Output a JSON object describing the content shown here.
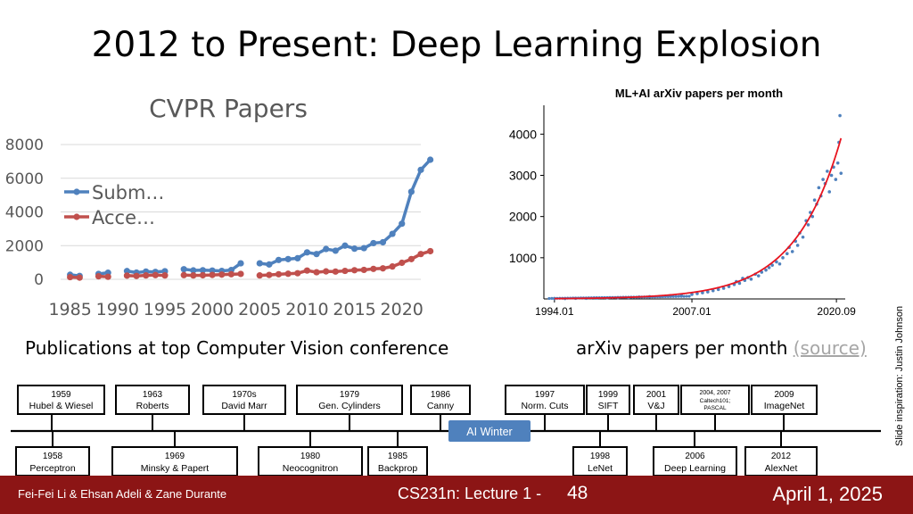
{
  "slide": {
    "title": "2012 to Present: Deep Learning Explosion",
    "cvpr_caption": "Publications at top Computer Vision conference",
    "arxiv_caption": "arXiv papers per month",
    "arxiv_source_link": "(source)",
    "side_note": "Slide inspiration: Justin Johnson"
  },
  "footer": {
    "authors": "Fei-Fei Li & Ehsan Adeli & Zane Durante",
    "course": "CS231n: Lecture 1 -",
    "page": "48",
    "date": "April 1, 2025"
  },
  "colors": {
    "submitted": "#4f81bd",
    "accepted": "#c0504d",
    "fit": "#e8141f",
    "dots": "#4f81bd",
    "footer": "#8c1515",
    "winter": "#4f81bd"
  },
  "chart_data": [
    {
      "type": "line",
      "title": "CVPR Papers",
      "xlabel": "",
      "ylabel": "",
      "xlim": [
        1984,
        2022
      ],
      "ylim": [
        0,
        8000
      ],
      "x_ticks": [
        "1985",
        "1990",
        "1995",
        "2000",
        "2005",
        "2010",
        "2015",
        "2020"
      ],
      "y_ticks": [
        "0",
        "2000",
        "4000",
        "6000",
        "8000"
      ],
      "grid": true,
      "legend": "left",
      "series": [
        {
          "name": "Subm…",
          "color": "#4f81bd",
          "segments": [
            [
              [
                1985,
                270
              ],
              [
                1986,
                200
              ]
            ],
            [
              [
                1988,
                320
              ],
              [
                1989,
                390
              ]
            ],
            [
              [
                1991,
                490
              ],
              [
                1992,
                400
              ],
              [
                1993,
                460
              ],
              [
                1994,
                440
              ],
              [
                1995,
                480
              ]
            ],
            [
              [
                1997,
                600
              ],
              [
                1998,
                530
              ],
              [
                1999,
                540
              ],
              [
                2000,
                520
              ],
              [
                2001,
                500
              ],
              [
                2002,
                550
              ],
              [
                2003,
                950
              ]
            ],
            [
              [
                2005,
                950
              ],
              [
                2006,
                880
              ],
              [
                2007,
                1150
              ],
              [
                2008,
                1200
              ],
              [
                2009,
                1250
              ],
              [
                2010,
                1600
              ],
              [
                2011,
                1500
              ],
              [
                2012,
                1800
              ],
              [
                2013,
                1700
              ],
              [
                2014,
                2000
              ],
              [
                2015,
                1820
              ],
              [
                2016,
                1850
              ],
              [
                2017,
                2150
              ],
              [
                2018,
                2200
              ],
              [
                2019,
                2700
              ],
              [
                2020,
                3300
              ],
              [
                2021,
                5200
              ],
              [
                2022,
                6500
              ],
              [
                2023,
                7100
              ]
            ]
          ]
        },
        {
          "name": "Acce…",
          "color": "#c0504d",
          "segments": [
            [
              [
                1985,
                130
              ],
              [
                1986,
                100
              ]
            ],
            [
              [
                1988,
                180
              ],
              [
                1989,
                150
              ]
            ],
            [
              [
                1991,
                220
              ],
              [
                1992,
                200
              ],
              [
                1993,
                230
              ],
              [
                1994,
                250
              ],
              [
                1995,
                230
              ]
            ],
            [
              [
                1997,
                250
              ],
              [
                1998,
                230
              ],
              [
                1999,
                240
              ],
              [
                2000,
                260
              ],
              [
                2001,
                280
              ],
              [
                2002,
                300
              ],
              [
                2003,
                320
              ]
            ],
            [
              [
                2005,
                230
              ],
              [
                2006,
                260
              ],
              [
                2007,
                300
              ],
              [
                2008,
                330
              ],
              [
                2009,
                360
              ],
              [
                2010,
                520
              ],
              [
                2011,
                420
              ],
              [
                2012,
                470
              ],
              [
                2013,
                460
              ],
              [
                2014,
                500
              ],
              [
                2015,
                540
              ],
              [
                2016,
                560
              ],
              [
                2017,
                620
              ],
              [
                2018,
                650
              ],
              [
                2019,
                760
              ],
              [
                2020,
                980
              ],
              [
                2021,
                1200
              ],
              [
                2022,
                1500
              ],
              [
                2023,
                1670
              ]
            ]
          ]
        }
      ]
    },
    {
      "type": "scatter",
      "title": "ML+AI arXiv papers per month",
      "xlabel": "",
      "ylabel": "",
      "xlim": [
        1993,
        2021.5
      ],
      "ylim": [
        0,
        4700
      ],
      "x_ticks": [
        "1994.01",
        "2007.01",
        "2020.09"
      ],
      "y_ticks": [
        "1000",
        "2000",
        "3000",
        "4000"
      ],
      "points": [
        [
          1994,
          10
        ],
        [
          1995,
          10
        ],
        [
          1996,
          15
        ],
        [
          1997,
          15
        ],
        [
          1998,
          20
        ],
        [
          1999,
          25
        ],
        [
          2000,
          30
        ],
        [
          2001,
          35
        ],
        [
          2002,
          45
        ],
        [
          2003,
          55
        ],
        [
          2004,
          60
        ],
        [
          2005,
          80
        ],
        [
          2006,
          100
        ],
        [
          2007,
          110
        ],
        [
          2007.5,
          130
        ],
        [
          2008,
          150
        ],
        [
          2008.5,
          170
        ],
        [
          2009,
          200
        ],
        [
          2009.5,
          230
        ],
        [
          2010,
          260
        ],
        [
          2010.5,
          300
        ],
        [
          2011,
          350
        ],
        [
          2011.2,
          420
        ],
        [
          2011.5,
          380
        ],
        [
          2011.8,
          500
        ],
        [
          2012,
          450
        ],
        [
          2012.3,
          520
        ],
        [
          2012.6,
          480
        ],
        [
          2013,
          600
        ],
        [
          2013.3,
          560
        ],
        [
          2013.6,
          650
        ],
        [
          2014,
          700
        ],
        [
          2014.3,
          760
        ],
        [
          2014.6,
          820
        ],
        [
          2015,
          900
        ],
        [
          2015.3,
          850
        ],
        [
          2015.6,
          1000
        ],
        [
          2016,
          1100
        ],
        [
          2016.2,
          1250
        ],
        [
          2016.5,
          1150
        ],
        [
          2016.8,
          1400
        ],
        [
          2017,
          1300
        ],
        [
          2017.2,
          1600
        ],
        [
          2017.5,
          1500
        ],
        [
          2017.8,
          1900
        ],
        [
          2018,
          1800
        ],
        [
          2018.2,
          2100
        ],
        [
          2018.4,
          2000
        ],
        [
          2018.6,
          2400
        ],
        [
          2018.8,
          2300
        ],
        [
          2019,
          2700
        ],
        [
          2019.2,
          2500
        ],
        [
          2019.4,
          2900
        ],
        [
          2019.6,
          2800
        ],
        [
          2019.8,
          3100
        ],
        [
          2020,
          2600
        ],
        [
          2020.2,
          3000
        ],
        [
          2020.4,
          3200
        ],
        [
          2020.6,
          2900
        ],
        [
          2020.8,
          3300
        ],
        [
          2020.9,
          3800
        ],
        [
          2021,
          4450
        ],
        [
          2021.1,
          3050
        ]
      ],
      "fit": "exponential",
      "fit_color": "#e8141f"
    }
  ],
  "timeline": {
    "ai_winter": "AI Winter",
    "top": [
      {
        "year": "1959",
        "name": "Hubel & Wiesel"
      },
      {
        "year": "1963",
        "name": "Roberts"
      },
      {
        "year": "1970s",
        "name": "David Marr"
      },
      {
        "year": "1979",
        "name": "Gen. Cylinders"
      },
      {
        "year": "1986",
        "name": "Canny"
      },
      {
        "year": "1997",
        "name": "Norm. Cuts"
      },
      {
        "year": "1999",
        "name": "SIFT"
      },
      {
        "year": "2001",
        "name": "V&J"
      },
      {
        "year": "2004, 2007",
        "name": "Caltech101; PASCAL"
      },
      {
        "year": "2009",
        "name": "ImageNet"
      }
    ],
    "bottom": [
      {
        "year": "1958",
        "name": "Perceptron"
      },
      {
        "year": "1969",
        "name": "Minsky & Papert"
      },
      {
        "year": "1980",
        "name": "Neocognitron"
      },
      {
        "year": "1985",
        "name": "Backprop"
      },
      {
        "year": "1998",
        "name": "LeNet"
      },
      {
        "year": "2006",
        "name": "Deep Learning"
      },
      {
        "year": "2012",
        "name": "AlexNet"
      }
    ]
  }
}
